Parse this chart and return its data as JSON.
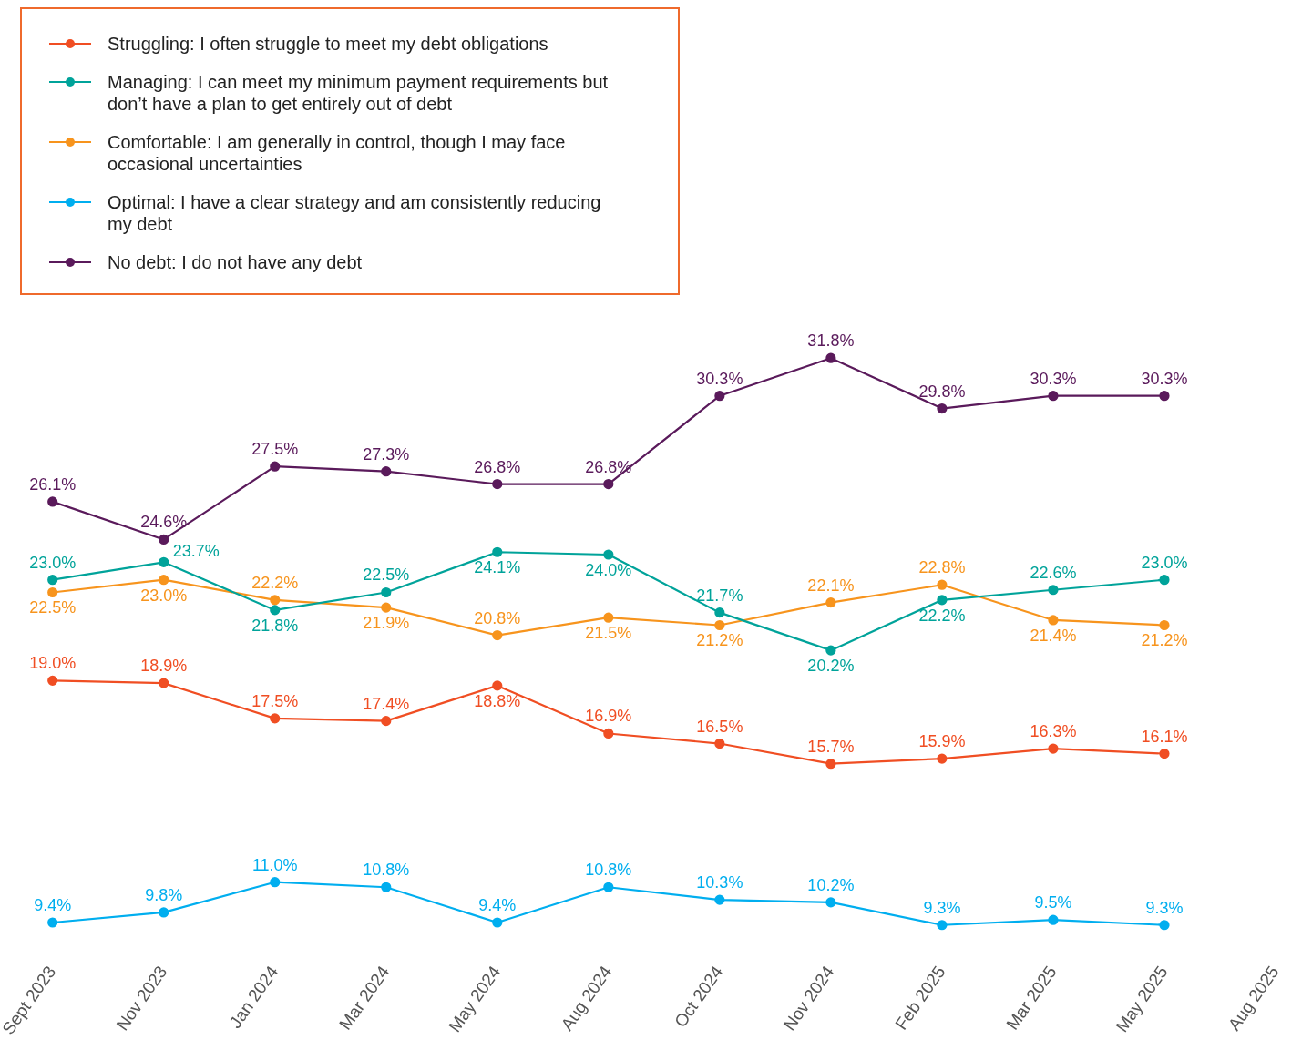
{
  "chart_data": {
    "type": "line",
    "categories": [
      "Sept 2023",
      "Nov 2023",
      "Jan 2024",
      "Mar 2024",
      "May 2024",
      "Aug 2024",
      "Oct 2024",
      "Nov 2024",
      "Feb 2025",
      "Mar 2025",
      "May 2025",
      "Aug 2025"
    ],
    "series": [
      {
        "name": "Struggling: I often struggle to meet my debt obligations",
        "color": "#f04e23",
        "values": [
          19.0,
          18.9,
          17.5,
          17.4,
          18.8,
          16.9,
          16.5,
          15.7,
          15.9,
          16.3,
          16.1,
          null
        ],
        "value_labels": [
          "19.0%",
          "18.9%",
          "17.5%",
          "17.4%",
          "18.8%",
          "16.9%",
          "16.5%",
          "15.7%",
          "15.9%",
          "16.3%",
          "16.1%",
          null
        ]
      },
      {
        "name": "Managing: I can meet my minimum payment requirements but don’t have a plan to get entirely out of debt",
        "color": "#00a39a",
        "values": [
          23.0,
          23.7,
          21.8,
          22.5,
          24.1,
          24.0,
          21.7,
          20.2,
          22.2,
          22.6,
          23.0,
          null
        ],
        "value_labels": [
          "23.0%",
          "23.7%",
          "21.8%",
          "22.5%",
          "24.1%",
          "24.0%",
          "21.7%",
          "20.2%",
          "22.2%",
          "22.6%",
          "23.0%",
          null
        ]
      },
      {
        "name": "Comfortable: I am generally in control, though I may face occasional uncertainties",
        "color": "#f7941d",
        "values": [
          22.5,
          23.0,
          22.2,
          21.9,
          20.8,
          21.5,
          21.2,
          22.1,
          22.8,
          21.4,
          21.2,
          null
        ],
        "value_labels": [
          "22.5%",
          "23.0%",
          "22.2%",
          "21.9%",
          "20.8%",
          "21.5%",
          "21.2%",
          "22.1%",
          "22.8%",
          "21.4%",
          "21.2%",
          null
        ]
      },
      {
        "name": "Optimal: I have a clear strategy and am consistently reducing my debt",
        "color": "#00aeef",
        "values": [
          9.4,
          9.8,
          11.0,
          10.8,
          9.4,
          10.8,
          10.3,
          10.2,
          9.3,
          9.5,
          9.3,
          null
        ],
        "value_labels": [
          "9.4%",
          "9.8%",
          "11.0%",
          "10.8%",
          "9.4%",
          "10.8%",
          "10.3%",
          "10.2%",
          "9.3%",
          "9.5%",
          "9.3%",
          null
        ]
      },
      {
        "name": "No debt: I do not have any debt",
        "color": "#5a1a5b",
        "values": [
          26.1,
          24.6,
          27.5,
          27.3,
          26.8,
          26.8,
          30.3,
          31.8,
          29.8,
          30.3,
          30.3,
          null
        ],
        "value_labels": [
          "26.1%",
          "24.6%",
          "27.5%",
          "27.3%",
          "26.8%",
          "26.8%",
          "30.3%",
          "31.8%",
          "29.8%",
          "30.3%",
          "30.3%",
          null
        ]
      }
    ],
    "grid": false,
    "legend": "top left",
    "marker": "circle",
    "line_style": "solid"
  }
}
